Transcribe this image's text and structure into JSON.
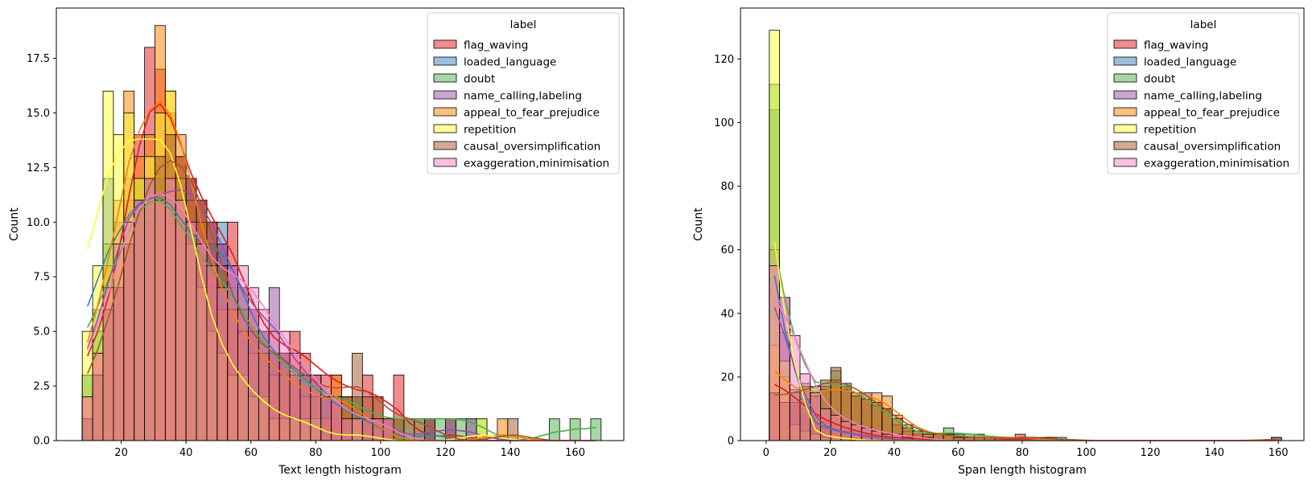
{
  "chart_data": [
    {
      "type": "histogram",
      "xlabel": "Text length histogram",
      "ylabel": "Count",
      "xlim": [
        0,
        175
      ],
      "ylim": [
        0,
        19.8
      ],
      "xticks": [
        20,
        40,
        60,
        80,
        100,
        120,
        140,
        160
      ],
      "yticks": [
        0.0,
        2.5,
        5.0,
        7.5,
        10.0,
        12.5,
        15.0,
        17.5
      ],
      "ytick_decimals": 1,
      "bin_start": 8,
      "bin_width": 3.2,
      "legend": {
        "title": "label",
        "placement": "upper right"
      },
      "series": [
        {
          "name": "flag_waving",
          "color": "#e41a1c",
          "counts": [
            2,
            4,
            6,
            8,
            11,
            14,
            18,
            17,
            15,
            13,
            12,
            11,
            10,
            9,
            10,
            7,
            6,
            5,
            4,
            4,
            5,
            4,
            3,
            3,
            3,
            2,
            2,
            3,
            2,
            1,
            3,
            0,
            0,
            0,
            0,
            1,
            0,
            0,
            0,
            0,
            0,
            0,
            0,
            0,
            0,
            0,
            0,
            0,
            0,
            0
          ]
        },
        {
          "name": "loaded_language",
          "color": "#377eb8",
          "counts": [
            3,
            6,
            12,
            9,
            10,
            11,
            12,
            11,
            12,
            10,
            9,
            8,
            9,
            10,
            8,
            7,
            5,
            4,
            4,
            4,
            3,
            3,
            2,
            2,
            2,
            1,
            1,
            1,
            1,
            0,
            0,
            0,
            0,
            1,
            0,
            0,
            0,
            0,
            0,
            0,
            0,
            0,
            0,
            0,
            0,
            0,
            0,
            0,
            0,
            0
          ]
        },
        {
          "name": "doubt",
          "color": "#4daf4a",
          "counts": [
            3,
            5,
            9,
            8,
            9,
            12,
            11,
            12,
            11,
            9,
            10,
            8,
            7,
            8,
            7,
            6,
            4,
            5,
            4,
            3,
            3,
            3,
            2,
            2,
            2,
            2,
            2,
            1,
            1,
            1,
            1,
            1,
            1,
            1,
            1,
            1,
            1,
            1,
            1,
            0,
            0,
            0,
            0,
            0,
            0,
            1,
            0,
            1,
            0,
            1
          ]
        },
        {
          "name": "name_calling,labeling",
          "color": "#984ea3",
          "counts": [
            2,
            4,
            7,
            10,
            12,
            11,
            10,
            12,
            11,
            12,
            12,
            11,
            10,
            9,
            8,
            6,
            6,
            5,
            7,
            4,
            3,
            3,
            3,
            2,
            2,
            1,
            1,
            1,
            1,
            1,
            0,
            0,
            0,
            1,
            0,
            1,
            0,
            1,
            0,
            0,
            0,
            0,
            0,
            0,
            0,
            0,
            0,
            0,
            0,
            0
          ]
        },
        {
          "name": "appeal_to_fear_prejudice",
          "color": "#ff7f00",
          "counts": [
            2,
            4,
            8,
            11,
            16,
            13,
            14,
            19,
            16,
            14,
            11,
            10,
            8,
            6,
            6,
            5,
            4,
            4,
            3,
            3,
            3,
            2,
            2,
            1,
            3,
            2,
            1,
            1,
            1,
            0,
            0,
            0,
            0,
            0,
            0,
            0,
            0,
            0,
            0,
            0,
            1,
            0,
            0,
            0,
            0,
            0,
            0,
            0,
            0,
            0
          ]
        },
        {
          "name": "repetition",
          "color": "#ffff33",
          "counts": [
            5,
            8,
            16,
            14,
            15,
            12,
            13,
            15,
            16,
            12,
            9,
            7,
            5,
            4,
            3,
            3,
            2,
            2,
            1,
            1,
            1,
            1,
            1,
            0,
            0,
            0,
            1,
            0,
            0,
            0,
            0,
            0,
            0,
            0,
            0,
            0,
            0,
            0,
            1,
            0,
            0,
            0,
            0,
            0,
            0,
            0,
            0,
            0,
            0,
            0
          ]
        },
        {
          "name": "causal_oversimplification",
          "color": "#a65628",
          "counts": [
            1,
            3,
            6,
            7,
            9,
            11,
            12,
            13,
            14,
            13,
            12,
            11,
            10,
            8,
            6,
            5,
            5,
            4,
            4,
            4,
            3,
            3,
            3,
            2,
            2,
            2,
            4,
            2,
            2,
            1,
            1,
            1,
            1,
            1,
            0,
            0,
            0,
            0,
            0,
            0,
            0,
            1,
            0,
            0,
            0,
            0,
            0,
            0,
            0,
            0
          ]
        },
        {
          "name": "exaggeration,minimisation",
          "color": "#f781bf",
          "counts": [
            2,
            4,
            7,
            9,
            10,
            11,
            12,
            11,
            12,
            11,
            10,
            9,
            8,
            7,
            8,
            8,
            7,
            6,
            5,
            5,
            4,
            3,
            3,
            2,
            2,
            1,
            1,
            1,
            1,
            1,
            0,
            0,
            0,
            0,
            0,
            0,
            0,
            0,
            0,
            0,
            0,
            0,
            0,
            0,
            0,
            0,
            0,
            0,
            0,
            0
          ]
        }
      ]
    },
    {
      "type": "histogram",
      "xlabel": "Span length histogram",
      "ylabel": "Count",
      "xlim": [
        -8,
        168
      ],
      "ylim": [
        0,
        136
      ],
      "xticks": [
        0,
        20,
        40,
        60,
        80,
        100,
        120,
        140,
        160
      ],
      "yticks": [
        0,
        20,
        40,
        60,
        80,
        100,
        120
      ],
      "ytick_decimals": 0,
      "bin_start": 1,
      "bin_width": 3.2,
      "legend": {
        "title": "label",
        "placement": "upper right"
      },
      "series": [
        {
          "name": "flag_waving",
          "color": "#e41a1c",
          "counts": [
            20,
            20,
            12,
            10,
            8,
            6,
            5,
            4,
            3,
            2,
            1,
            1,
            1,
            1,
            0,
            1,
            0,
            0,
            0,
            0,
            0,
            0,
            0,
            0,
            2,
            0,
            0,
            0,
            0,
            0,
            0,
            0,
            0,
            0,
            0,
            0,
            0,
            0,
            0,
            0,
            0,
            0,
            0,
            0,
            0,
            0,
            0,
            0,
            0,
            1
          ]
        },
        {
          "name": "loaded_language",
          "color": "#377eb8",
          "counts": [
            104,
            22,
            8,
            6,
            5,
            4,
            3,
            2,
            2,
            1,
            1,
            1,
            0,
            0,
            0,
            0,
            0,
            0,
            0,
            0,
            0,
            0,
            0,
            0,
            0,
            0,
            0,
            0,
            0,
            0,
            0,
            0,
            0,
            0,
            0,
            0,
            0,
            0,
            0,
            0,
            0,
            0,
            0,
            0,
            0,
            0,
            0,
            0,
            0,
            0
          ]
        },
        {
          "name": "doubt",
          "color": "#4daf4a",
          "counts": [
            112,
            34,
            15,
            18,
            17,
            17,
            22,
            17,
            14,
            13,
            11,
            10,
            5,
            3,
            2,
            1,
            2,
            4,
            2,
            2,
            2,
            1,
            1,
            1,
            1,
            1,
            0,
            1,
            1,
            0,
            0,
            0,
            0,
            0,
            0,
            0,
            0,
            0,
            0,
            0,
            0,
            0,
            0,
            0,
            0,
            0,
            0,
            0,
            0,
            0
          ]
        },
        {
          "name": "name_calling,labeling",
          "color": "#984ea3",
          "counts": [
            60,
            45,
            12,
            8,
            5,
            4,
            3,
            3,
            2,
            1,
            1,
            1,
            0,
            0,
            0,
            0,
            0,
            0,
            0,
            0,
            0,
            0,
            0,
            0,
            0,
            0,
            0,
            0,
            0,
            0,
            0,
            0,
            0,
            0,
            0,
            0,
            0,
            0,
            0,
            0,
            0,
            0,
            0,
            0,
            0,
            0,
            0,
            0,
            0,
            0
          ]
        },
        {
          "name": "appeal_to_fear_prejudice",
          "color": "#ff7f00",
          "counts": [
            30,
            20,
            12,
            13,
            15,
            16,
            19,
            16,
            14,
            13,
            15,
            14,
            8,
            5,
            3,
            2,
            2,
            2,
            1,
            1,
            1,
            1,
            1,
            1,
            1,
            1,
            0,
            0,
            0,
            0,
            0,
            0,
            0,
            0,
            0,
            0,
            0,
            0,
            0,
            0,
            0,
            0,
            0,
            0,
            0,
            0,
            0,
            0,
            0,
            0
          ]
        },
        {
          "name": "repetition",
          "color": "#ffff33",
          "counts": [
            129,
            25,
            5,
            3,
            2,
            1,
            1,
            1,
            0,
            0,
            0,
            0,
            0,
            0,
            0,
            0,
            0,
            0,
            0,
            0,
            0,
            0,
            0,
            0,
            0,
            0,
            0,
            0,
            0,
            0,
            0,
            0,
            0,
            0,
            0,
            0,
            0,
            0,
            0,
            0,
            0,
            0,
            0,
            0,
            0,
            0,
            0,
            0,
            0,
            0
          ]
        },
        {
          "name": "causal_oversimplification",
          "color": "#a65628",
          "counts": [
            15,
            12,
            16,
            17,
            14,
            19,
            23,
            18,
            15,
            15,
            12,
            10,
            7,
            4,
            3,
            2,
            2,
            2,
            1,
            1,
            1,
            1,
            1,
            0,
            1,
            1,
            1,
            1,
            0,
            0,
            0,
            0,
            0,
            0,
            0,
            0,
            0,
            0,
            0,
            0,
            0,
            0,
            0,
            0,
            0,
            0,
            0,
            0,
            0,
            1
          ]
        },
        {
          "name": "exaggeration,minimisation",
          "color": "#f781bf",
          "counts": [
            55,
            45,
            33,
            21,
            15,
            10,
            8,
            6,
            5,
            4,
            3,
            2,
            2,
            1,
            1,
            1,
            0,
            0,
            0,
            0,
            0,
            0,
            0,
            0,
            0,
            0,
            0,
            0,
            0,
            0,
            0,
            0,
            0,
            0,
            0,
            0,
            0,
            0,
            0,
            0,
            0,
            0,
            0,
            0,
            0,
            0,
            0,
            0,
            0,
            0
          ]
        }
      ]
    }
  ]
}
